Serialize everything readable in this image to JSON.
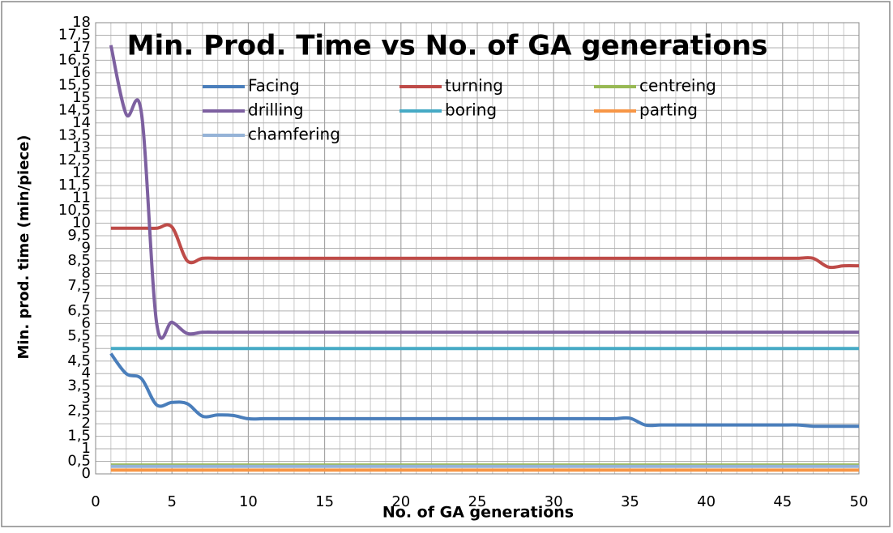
{
  "chart_data": {
    "type": "line",
    "title": "Min. Prod. Time vs No. of GA generations",
    "xlabel": "No. of GA generations",
    "ylabel": "Min. prod. time (min/piece)",
    "x": [
      1,
      2,
      3,
      4,
      5,
      6,
      7,
      8,
      9,
      10,
      11,
      12,
      13,
      14,
      15,
      16,
      17,
      18,
      19,
      20,
      21,
      22,
      23,
      24,
      25,
      26,
      27,
      28,
      29,
      30,
      31,
      32,
      33,
      34,
      35,
      36,
      37,
      38,
      39,
      40,
      41,
      42,
      43,
      44,
      45,
      46,
      47,
      48,
      49,
      50
    ],
    "series": [
      {
        "name": "Facing",
        "color": "#4a7ebb",
        "values": [
          4.8,
          4,
          3.8,
          2.75,
          2.85,
          2.8,
          2.3,
          2.35,
          2.33,
          2.2,
          2.2,
          2.2,
          2.2,
          2.2,
          2.2,
          2.2,
          2.2,
          2.2,
          2.2,
          2.2,
          2.2,
          2.2,
          2.2,
          2.2,
          2.2,
          2.2,
          2.2,
          2.2,
          2.2,
          2.2,
          2.2,
          2.2,
          2.2,
          2.2,
          2.22,
          1.95,
          1.95,
          1.95,
          1.95,
          1.95,
          1.95,
          1.95,
          1.95,
          1.95,
          1.95,
          1.95,
          1.9,
          1.9,
          1.9,
          1.9
        ]
      },
      {
        "name": "turning",
        "color": "#be4b48",
        "values": [
          9.8,
          9.8,
          9.8,
          9.8,
          9.85,
          8.5,
          8.6,
          8.6,
          8.6,
          8.6,
          8.6,
          8.6,
          8.6,
          8.6,
          8.6,
          8.6,
          8.6,
          8.6,
          8.6,
          8.6,
          8.6,
          8.6,
          8.6,
          8.6,
          8.6,
          8.6,
          8.6,
          8.6,
          8.6,
          8.6,
          8.6,
          8.6,
          8.6,
          8.6,
          8.6,
          8.6,
          8.6,
          8.6,
          8.6,
          8.6,
          8.6,
          8.6,
          8.6,
          8.6,
          8.6,
          8.6,
          8.6,
          8.25,
          8.3,
          8.3
        ]
      },
      {
        "name": "centreing",
        "color": "#98b954",
        "values": [
          0.35,
          0.35,
          0.35,
          0.35,
          0.35,
          0.35,
          0.35,
          0.35,
          0.35,
          0.35,
          0.35,
          0.35,
          0.35,
          0.35,
          0.35,
          0.35,
          0.35,
          0.35,
          0.35,
          0.35,
          0.35,
          0.35,
          0.35,
          0.35,
          0.35,
          0.35,
          0.35,
          0.35,
          0.35,
          0.35,
          0.35,
          0.35,
          0.35,
          0.35,
          0.35,
          0.35,
          0.35,
          0.35,
          0.35,
          0.35,
          0.35,
          0.35,
          0.35,
          0.35,
          0.35,
          0.35,
          0.35,
          0.35,
          0.35,
          0.35
        ]
      },
      {
        "name": "drilling",
        "color": "#7d60a0",
        "values": [
          17.1,
          14.35,
          14.4,
          6,
          6.05,
          5.6,
          5.65,
          5.65,
          5.65,
          5.65,
          5.65,
          5.65,
          5.65,
          5.65,
          5.65,
          5.65,
          5.65,
          5.65,
          5.65,
          5.65,
          5.65,
          5.65,
          5.65,
          5.65,
          5.65,
          5.65,
          5.65,
          5.65,
          5.65,
          5.65,
          5.65,
          5.65,
          5.65,
          5.65,
          5.65,
          5.65,
          5.65,
          5.65,
          5.65,
          5.65,
          5.65,
          5.65,
          5.65,
          5.65,
          5.65,
          5.65,
          5.65,
          5.65,
          5.65,
          5.65
        ]
      },
      {
        "name": "boring",
        "color": "#46aac5",
        "values": [
          5,
          5,
          5,
          5,
          5,
          5,
          5,
          5,
          5,
          5,
          5,
          5,
          5,
          5,
          5,
          5,
          5,
          5,
          5,
          5,
          5,
          5,
          5,
          5,
          5,
          5,
          5,
          5,
          5,
          5,
          5,
          5,
          5,
          5,
          5,
          5,
          5,
          5,
          5,
          5,
          5,
          5,
          5,
          5,
          5,
          5,
          5,
          5,
          5,
          5
        ]
      },
      {
        "name": "parting",
        "color": "#f79646",
        "values": [
          0.15,
          0.15,
          0.15,
          0.15,
          0.15,
          0.15,
          0.15,
          0.15,
          0.15,
          0.15,
          0.15,
          0.15,
          0.15,
          0.15,
          0.15,
          0.15,
          0.15,
          0.15,
          0.15,
          0.15,
          0.15,
          0.15,
          0.15,
          0.15,
          0.15,
          0.15,
          0.15,
          0.15,
          0.15,
          0.15,
          0.15,
          0.15,
          0.15,
          0.15,
          0.15,
          0.15,
          0.15,
          0.15,
          0.15,
          0.15,
          0.15,
          0.15,
          0.15,
          0.15,
          0.15,
          0.15,
          0.15,
          0.15,
          0.15,
          0.15
        ]
      },
      {
        "name": "chamfering",
        "color": "#95b3d7",
        "values": [
          0.3,
          0.3,
          0.3,
          0.3,
          0.3,
          0.3,
          0.3,
          0.3,
          0.3,
          0.3,
          0.3,
          0.3,
          0.3,
          0.3,
          0.3,
          0.3,
          0.3,
          0.3,
          0.3,
          0.3,
          0.3,
          0.3,
          0.3,
          0.3,
          0.3,
          0.3,
          0.3,
          0.3,
          0.3,
          0.3,
          0.3,
          0.3,
          0.3,
          0.3,
          0.3,
          0.3,
          0.3,
          0.3,
          0.3,
          0.3,
          0.3,
          0.3,
          0.3,
          0.3,
          0.3,
          0.3,
          0.3,
          0.3,
          0.3,
          0.3
        ]
      }
    ],
    "xlim": [
      0,
      50
    ],
    "xticks": [
      0,
      5,
      10,
      15,
      20,
      25,
      30,
      35,
      40,
      45,
      50
    ],
    "ylim": [
      0,
      18
    ],
    "yticks": [
      0,
      {
        "value": 0.5,
        "label": "0,5"
      },
      1,
      {
        "value": 1.5,
        "label": "1,5"
      },
      2,
      {
        "value": 2.5,
        "label": "2,5"
      },
      3,
      {
        "value": 3.5,
        "label": "3,5"
      },
      4,
      {
        "value": 4.5,
        "label": "4,5"
      },
      5,
      {
        "value": 5.5,
        "label": "5,5"
      },
      6,
      {
        "value": 6.5,
        "label": "6,5"
      },
      7,
      {
        "value": 7.5,
        "label": "7,5"
      },
      8,
      {
        "value": 8.5,
        "label": "8,5"
      },
      9,
      {
        "value": 9.5,
        "label": "9,5"
      },
      10,
      {
        "value": 10.5,
        "label": "10,5"
      },
      11,
      {
        "value": 11.5,
        "label": "11,5"
      },
      12,
      {
        "value": 12.5,
        "label": "12,5"
      },
      13,
      {
        "value": 13.5,
        "label": "13,5"
      },
      14,
      {
        "value": 14.5,
        "label": "14,5"
      },
      15,
      {
        "value": 15.5,
        "label": "15,5"
      },
      16,
      {
        "value": 16.5,
        "label": "16,5"
      },
      17,
      {
        "value": 17.5,
        "label": "17,5"
      },
      18
    ],
    "grid": true,
    "legend": "top"
  }
}
